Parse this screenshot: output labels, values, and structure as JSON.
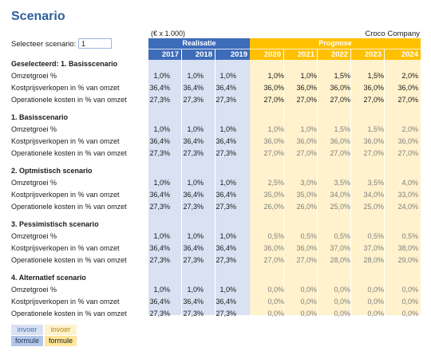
{
  "title": "Scenario",
  "select_label": "Selecteer scenario:",
  "select_value": "1",
  "unit_label": "(€ x 1.000)",
  "company": "Croco Company",
  "header": {
    "realisatie": "Realisatie",
    "prognose": "Prognose",
    "years_real": [
      "2017",
      "2018",
      "2019"
    ],
    "years_prog": [
      "2020",
      "2021",
      "2022",
      "2023",
      "2024"
    ]
  },
  "sections": [
    {
      "title": "Geselecteerd: 1. Basisscenario",
      "rows": [
        {
          "label": "Omzetgroei %",
          "real": [
            "1,0%",
            "1,0%",
            "1,0%"
          ],
          "prog": [
            "1,0%",
            "1,0%",
            "1,5%",
            "1,5%",
            "2,0%"
          ]
        },
        {
          "label": "Kostprijsverkopen in % van omzet",
          "real": [
            "36,4%",
            "36,4%",
            "36,4%"
          ],
          "prog": [
            "36,0%",
            "36,0%",
            "36,0%",
            "36,0%",
            "36,0%"
          ]
        },
        {
          "label": "Operationele kosten in % van omzet",
          "real": [
            "27,3%",
            "27,3%",
            "27,3%"
          ],
          "prog": [
            "27,0%",
            "27,0%",
            "27,0%",
            "27,0%",
            "27,0%"
          ]
        }
      ]
    },
    {
      "title": "1. Basisscenario",
      "rows": [
        {
          "label": "Omzetgroei %",
          "real": [
            "1,0%",
            "1,0%",
            "1,0%"
          ],
          "prog": [
            "1,0%",
            "1,0%",
            "1,5%",
            "1,5%",
            "2,0%"
          ]
        },
        {
          "label": "Kostprijsverkopen in % van omzet",
          "real": [
            "36,4%",
            "36,4%",
            "36,4%"
          ],
          "prog": [
            "36,0%",
            "36,0%",
            "36,0%",
            "36,0%",
            "36,0%"
          ]
        },
        {
          "label": "Operationele kosten in % van omzet",
          "real": [
            "27,3%",
            "27,3%",
            "27,3%"
          ],
          "prog": [
            "27,0%",
            "27,0%",
            "27,0%",
            "27,0%",
            "27,0%"
          ]
        }
      ]
    },
    {
      "title": "2. Optmistisch scenario",
      "rows": [
        {
          "label": "Omzetgroei %",
          "real": [
            "1,0%",
            "1,0%",
            "1,0%"
          ],
          "prog": [
            "2,5%",
            "3,0%",
            "3,5%",
            "3,5%",
            "4,0%"
          ]
        },
        {
          "label": "Kostprijsverkopen in % van omzet",
          "real": [
            "36,4%",
            "36,4%",
            "36,4%"
          ],
          "prog": [
            "35,0%",
            "35,0%",
            "34,0%",
            "34,0%",
            "33,0%"
          ]
        },
        {
          "label": "Operationele kosten in % van omzet",
          "real": [
            "27,3%",
            "27,3%",
            "27,3%"
          ],
          "prog": [
            "26,0%",
            "26,0%",
            "25,0%",
            "25,0%",
            "24,0%"
          ]
        }
      ]
    },
    {
      "title": "3. Pessimistisch scenario",
      "rows": [
        {
          "label": "Omzetgroei %",
          "real": [
            "1,0%",
            "1,0%",
            "1,0%"
          ],
          "prog": [
            "0,5%",
            "0,5%",
            "0,5%",
            "0,5%",
            "0,5%"
          ]
        },
        {
          "label": "Kostprijsverkopen in % van omzet",
          "real": [
            "36,4%",
            "36,4%",
            "36,4%"
          ],
          "prog": [
            "36,0%",
            "36,0%",
            "37,0%",
            "37,0%",
            "38,0%"
          ]
        },
        {
          "label": "Operationele kosten in % van omzet",
          "real": [
            "27,3%",
            "27,3%",
            "27,3%"
          ],
          "prog": [
            "27,0%",
            "27,0%",
            "28,0%",
            "28,0%",
            "29,0%"
          ]
        }
      ]
    },
    {
      "title": "4. Alternatief scenario",
      "rows": [
        {
          "label": "Omzetgroei %",
          "real": [
            "1,0%",
            "1,0%",
            "1,0%"
          ],
          "prog": [
            "0,0%",
            "0,0%",
            "0,0%",
            "0,0%",
            "0,0%"
          ]
        },
        {
          "label": "Kostprijsverkopen in % van omzet",
          "real": [
            "36,4%",
            "36,4%",
            "36,4%"
          ],
          "prog": [
            "0,0%",
            "0,0%",
            "0,0%",
            "0,0%",
            "0,0%"
          ]
        },
        {
          "label": "Operationele kosten in % van omzet",
          "real": [
            "27,3%",
            "27,3%",
            "27,3%"
          ],
          "prog": [
            "0,0%",
            "0,0%",
            "0,0%",
            "0,0%",
            "0,0%"
          ]
        }
      ]
    }
  ],
  "legend": {
    "realisatie_input": "invoer",
    "realisatie_formula": "formule",
    "prognose_input": "invoer",
    "prognose_formula": "formule"
  },
  "colors": {
    "title": "#2f5f9e",
    "realisatie_header": "#3d6cb9",
    "prognose_header": "#ffc000",
    "realisatie_fill": "#d9e1f2",
    "prognose_fill": "#fff2cc"
  }
}
